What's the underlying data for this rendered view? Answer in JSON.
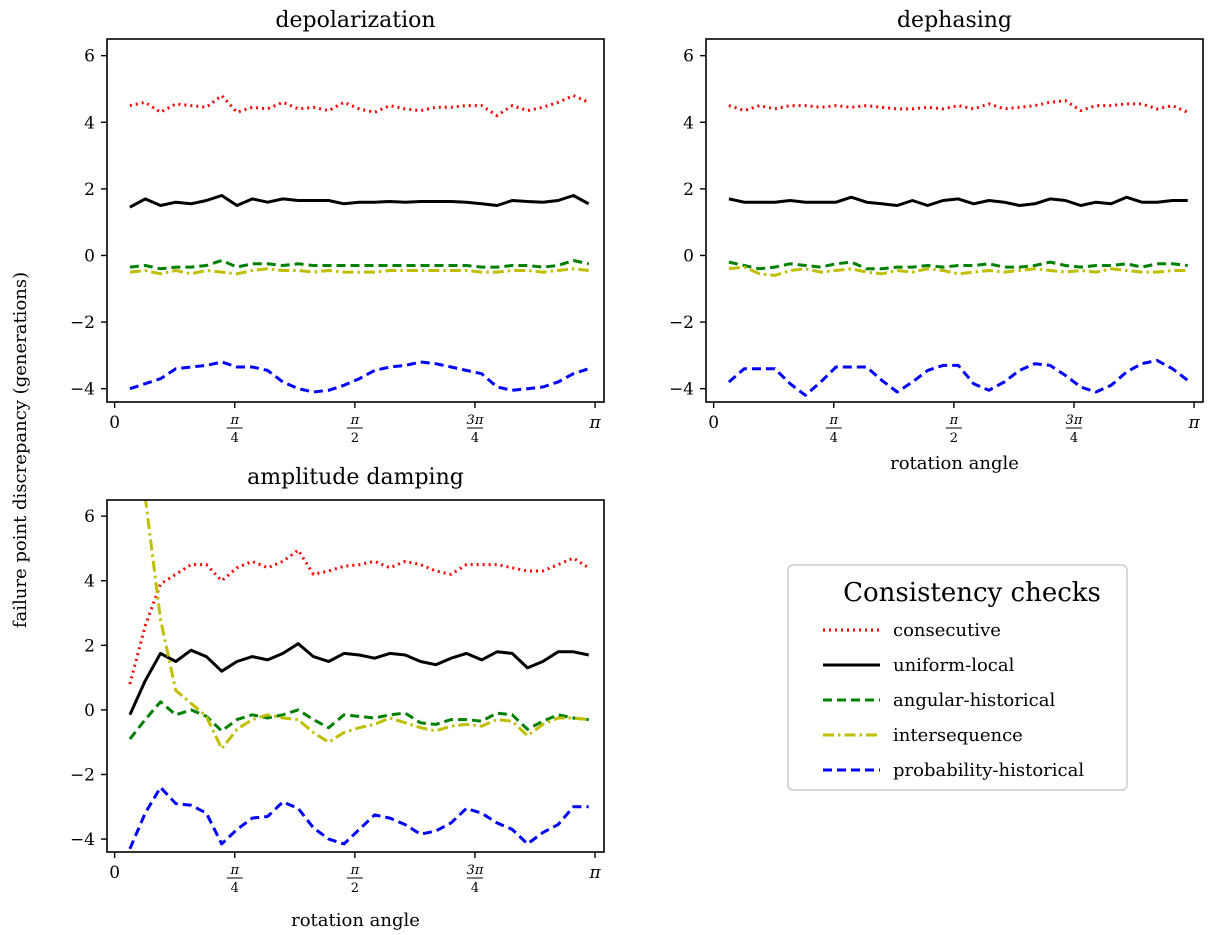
{
  "chart_data": {
    "type": "line",
    "ylabel": "failure point discrepancy (generations)",
    "ylim": [
      -4.4,
      6.5
    ],
    "yticks": [
      6,
      4,
      2,
      0,
      -2,
      -4
    ],
    "ytick_labels": [
      "6",
      "4",
      "2",
      "0",
      "−2",
      "−4"
    ],
    "xlim": [
      -0.05,
      3.2
    ],
    "xtick_values": [
      0,
      0.785398,
      1.570796,
      2.356194,
      3.141593
    ],
    "xticks": [
      {
        "num": "0",
        "den": ""
      },
      {
        "num": "π",
        "den": "4"
      },
      {
        "num": "π",
        "den": "2"
      },
      {
        "num": "3π",
        "den": "4"
      },
      {
        "num": "π",
        "den": ""
      }
    ],
    "x": [
      0.1,
      0.2,
      0.3,
      0.4,
      0.5,
      0.6,
      0.7,
      0.8,
      0.9,
      1.0,
      1.1,
      1.2,
      1.3,
      1.4,
      1.5,
      1.6,
      1.7,
      1.8,
      1.9,
      2.0,
      2.1,
      2.2,
      2.3,
      2.4,
      2.5,
      2.6,
      2.7,
      2.8,
      2.9,
      3.0,
      3.1
    ],
    "legend": {
      "title": "Consistency checks",
      "position": "right",
      "entries": [
        {
          "name": "consecutive",
          "color": "#ff0000",
          "dash": "dotted"
        },
        {
          "name": "uniform-local",
          "color": "#000000",
          "dash": "solid"
        },
        {
          "name": "angular-historical",
          "color": "#008000",
          "dash": "dashed"
        },
        {
          "name": "intersequence",
          "color": "#bfbf00",
          "dash": "dashdot"
        },
        {
          "name": "probability-historical",
          "color": "#0000ff",
          "dash": "dashed"
        }
      ]
    },
    "panels": [
      {
        "title": "depolarization",
        "xlabel": "",
        "series": [
          {
            "name": "consecutive",
            "values": [
              4.5,
              4.6,
              4.3,
              4.55,
              4.5,
              4.45,
              4.8,
              4.3,
              4.45,
              4.4,
              4.6,
              4.4,
              4.45,
              4.35,
              4.6,
              4.4,
              4.3,
              4.5,
              4.4,
              4.35,
              4.45,
              4.45,
              4.5,
              4.5,
              4.2,
              4.5,
              4.35,
              4.45,
              4.6,
              4.8,
              4.6
            ]
          },
          {
            "name": "uniform-local",
            "values": [
              1.45,
              1.7,
              1.5,
              1.6,
              1.55,
              1.65,
              1.8,
              1.5,
              1.7,
              1.6,
              1.7,
              1.65,
              1.65,
              1.65,
              1.55,
              1.6,
              1.6,
              1.62,
              1.6,
              1.62,
              1.62,
              1.62,
              1.6,
              1.55,
              1.5,
              1.65,
              1.62,
              1.6,
              1.65,
              1.8,
              1.55
            ]
          },
          {
            "name": "angular-historical",
            "values": [
              -0.35,
              -0.3,
              -0.4,
              -0.35,
              -0.35,
              -0.3,
              -0.15,
              -0.35,
              -0.25,
              -0.25,
              -0.3,
              -0.25,
              -0.3,
              -0.3,
              -0.3,
              -0.3,
              -0.3,
              -0.3,
              -0.3,
              -0.3,
              -0.3,
              -0.3,
              -0.3,
              -0.35,
              -0.35,
              -0.3,
              -0.3,
              -0.35,
              -0.3,
              -0.15,
              -0.25
            ]
          },
          {
            "name": "intersequence",
            "values": [
              -0.5,
              -0.45,
              -0.55,
              -0.45,
              -0.55,
              -0.45,
              -0.5,
              -0.55,
              -0.45,
              -0.4,
              -0.45,
              -0.45,
              -0.5,
              -0.45,
              -0.5,
              -0.5,
              -0.5,
              -0.45,
              -0.45,
              -0.45,
              -0.45,
              -0.45,
              -0.45,
              -0.5,
              -0.5,
              -0.45,
              -0.45,
              -0.5,
              -0.45,
              -0.4,
              -0.45
            ]
          },
          {
            "name": "probability-historical",
            "values": [
              -4.0,
              -3.85,
              -3.7,
              -3.4,
              -3.35,
              -3.3,
              -3.2,
              -3.35,
              -3.35,
              -3.45,
              -3.8,
              -4.0,
              -4.1,
              -4.05,
              -3.9,
              -3.7,
              -3.45,
              -3.35,
              -3.3,
              -3.2,
              -3.25,
              -3.35,
              -3.45,
              -3.55,
              -3.95,
              -4.05,
              -4.0,
              -3.95,
              -3.8,
              -3.55,
              -3.4
            ]
          }
        ]
      },
      {
        "title": "dephasing",
        "xlabel": "rotation angle",
        "series": [
          {
            "name": "consecutive",
            "values": [
              4.5,
              4.35,
              4.5,
              4.4,
              4.5,
              4.5,
              4.45,
              4.5,
              4.45,
              4.5,
              4.45,
              4.4,
              4.4,
              4.45,
              4.4,
              4.5,
              4.4,
              4.55,
              4.4,
              4.45,
              4.5,
              4.6,
              4.65,
              4.35,
              4.5,
              4.5,
              4.55,
              4.55,
              4.4,
              4.5,
              4.3
            ]
          },
          {
            "name": "uniform-local",
            "values": [
              1.7,
              1.6,
              1.6,
              1.6,
              1.65,
              1.6,
              1.6,
              1.6,
              1.75,
              1.6,
              1.55,
              1.5,
              1.65,
              1.5,
              1.65,
              1.7,
              1.55,
              1.65,
              1.6,
              1.5,
              1.55,
              1.7,
              1.65,
              1.5,
              1.6,
              1.55,
              1.75,
              1.6,
              1.6,
              1.65,
              1.65
            ]
          },
          {
            "name": "angular-historical",
            "values": [
              -0.2,
              -0.3,
              -0.4,
              -0.35,
              -0.25,
              -0.3,
              -0.35,
              -0.25,
              -0.2,
              -0.4,
              -0.4,
              -0.35,
              -0.35,
              -0.3,
              -0.35,
              -0.3,
              -0.3,
              -0.25,
              -0.35,
              -0.35,
              -0.3,
              -0.2,
              -0.3,
              -0.35,
              -0.3,
              -0.3,
              -0.25,
              -0.35,
              -0.25,
              -0.25,
              -0.3
            ]
          },
          {
            "name": "intersequence",
            "values": [
              -0.4,
              -0.35,
              -0.55,
              -0.6,
              -0.45,
              -0.4,
              -0.5,
              -0.45,
              -0.4,
              -0.5,
              -0.55,
              -0.45,
              -0.5,
              -0.4,
              -0.45,
              -0.55,
              -0.5,
              -0.45,
              -0.5,
              -0.45,
              -0.4,
              -0.45,
              -0.5,
              -0.45,
              -0.5,
              -0.4,
              -0.45,
              -0.5,
              -0.5,
              -0.45,
              -0.45
            ]
          },
          {
            "name": "probability-historical",
            "values": [
              -3.8,
              -3.4,
              -3.4,
              -3.4,
              -3.85,
              -4.2,
              -3.8,
              -3.35,
              -3.35,
              -3.35,
              -3.75,
              -4.1,
              -3.8,
              -3.45,
              -3.3,
              -3.3,
              -3.85,
              -4.05,
              -3.8,
              -3.45,
              -3.25,
              -3.3,
              -3.6,
              -3.95,
              -4.1,
              -3.9,
              -3.5,
              -3.25,
              -3.15,
              -3.4,
              -3.75
            ]
          }
        ]
      },
      {
        "title": "amplitude damping",
        "xlabel": "rotation angle",
        "series": [
          {
            "name": "consecutive",
            "values": [
              0.8,
              2.6,
              3.9,
              4.2,
              4.5,
              4.5,
              4.0,
              4.4,
              4.6,
              4.4,
              4.6,
              4.95,
              4.2,
              4.3,
              4.45,
              4.5,
              4.6,
              4.4,
              4.6,
              4.5,
              4.3,
              4.2,
              4.5,
              4.5,
              4.5,
              4.4,
              4.3,
              4.3,
              4.5,
              4.7,
              4.4
            ]
          },
          {
            "name": "uniform-local",
            "values": [
              -0.15,
              0.9,
              1.75,
              1.5,
              1.85,
              1.65,
              1.2,
              1.5,
              1.65,
              1.55,
              1.75,
              2.05,
              1.65,
              1.5,
              1.75,
              1.7,
              1.6,
              1.75,
              1.7,
              1.5,
              1.4,
              1.6,
              1.75,
              1.55,
              1.8,
              1.75,
              1.3,
              1.5,
              1.8,
              1.8,
              1.7
            ]
          },
          {
            "name": "angular-historical",
            "values": [
              -0.9,
              -0.3,
              0.25,
              -0.15,
              0.0,
              -0.2,
              -0.65,
              -0.3,
              -0.15,
              -0.25,
              -0.15,
              0.0,
              -0.3,
              -0.55,
              -0.15,
              -0.2,
              -0.25,
              -0.15,
              -0.1,
              -0.4,
              -0.45,
              -0.3,
              -0.3,
              -0.35,
              -0.1,
              -0.15,
              -0.6,
              -0.35,
              -0.15,
              -0.25,
              -0.3
            ]
          },
          {
            "name": "intersequence",
            "values": [
              null,
              6.6,
              2.8,
              0.6,
              0.2,
              -0.2,
              -1.2,
              -0.6,
              -0.3,
              -0.15,
              -0.25,
              -0.3,
              -0.7,
              -1.0,
              -0.7,
              -0.55,
              -0.45,
              -0.25,
              -0.4,
              -0.55,
              -0.65,
              -0.5,
              -0.45,
              -0.5,
              -0.3,
              -0.35,
              -0.8,
              -0.45,
              -0.25,
              -0.25,
              -0.3
            ]
          },
          {
            "name": "probability-historical",
            "values": [
              -4.3,
              -3.2,
              -2.4,
              -2.9,
              -2.95,
              -3.2,
              -4.15,
              -3.7,
              -3.35,
              -3.3,
              -2.85,
              -3.05,
              -3.65,
              -4.0,
              -4.15,
              -3.7,
              -3.25,
              -3.35,
              -3.55,
              -3.85,
              -3.75,
              -3.5,
              -3.05,
              -3.2,
              -3.5,
              -3.7,
              -4.15,
              -3.8,
              -3.55,
              -3.0,
              -3.0
            ]
          }
        ]
      }
    ]
  }
}
